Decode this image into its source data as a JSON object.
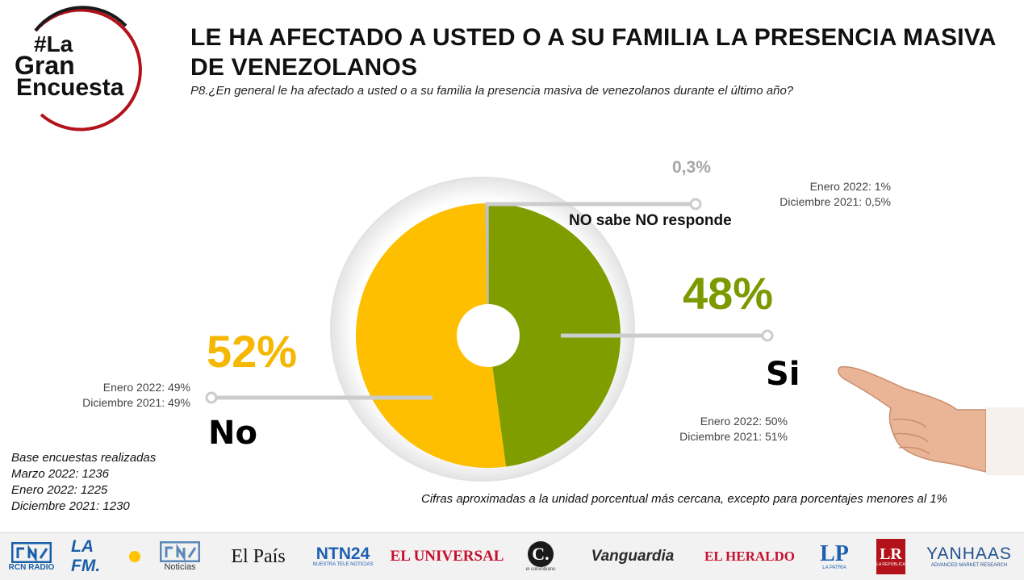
{
  "logo": {
    "line1": "#La",
    "line2": "Gran",
    "line3": "Encuesta"
  },
  "header": {
    "title": "LE HA AFECTADO A USTED  O A SU FAMILIA LA PRESENCIA MASIVA DE VENEZOLANOS",
    "question": "P8.¿En general  le ha afectado a usted  o a su familia la presencia masiva de venezolanos durante el último año?"
  },
  "chart_data": {
    "type": "pie",
    "title": "LE HA AFECTADO A USTED  O A SU FAMILIA LA PRESENCIA MASIVA DE VENEZOLANOS",
    "series": [
      {
        "name": "Si",
        "value": 48,
        "label": "48%",
        "color": "#809d00",
        "history": [
          "Enero 2022: 50%",
          "Diciembre 2021: 51%"
        ]
      },
      {
        "name": "No",
        "value": 52,
        "label": "52%",
        "color": "#fdbf00",
        "history": [
          "Enero 2022: 49%",
          "Diciembre 2021: 49%"
        ]
      },
      {
        "name": "NO sabe NO responde",
        "value": 0.3,
        "label": "0,3%",
        "color": "#c8c8c8",
        "history": [
          "Enero 2022: 1%",
          "Diciembre 2021: 0,5%"
        ]
      }
    ]
  },
  "base": {
    "heading": "Base encuestas realizadas",
    "rows": [
      "Marzo 2022: 1236",
      "Enero 2022: 1225",
      "Diciembre 2021: 1230"
    ]
  },
  "note": "Cifras aproximadas a la unidad porcentual más cercana, excepto para porcentajes menores al 1%",
  "footer": {
    "brands": [
      "RCN RADIO",
      "LA FM.",
      "Noticias",
      "El País",
      "NTN24",
      "EL UNIVERSAL",
      "C.",
      "Vanguardia",
      "EL HERALDO",
      "LP",
      "LR",
      "YANHAAS"
    ],
    "ntn_sub": "NUESTRA TELE NOTICIAS",
    "lp_sub": "LA PATRIA",
    "lr_sub": "LA REPÚBLICA",
    "c_sub": "el colombiano",
    "yanhaas_sub": "ADVANCED MARKET RESEARCH"
  }
}
